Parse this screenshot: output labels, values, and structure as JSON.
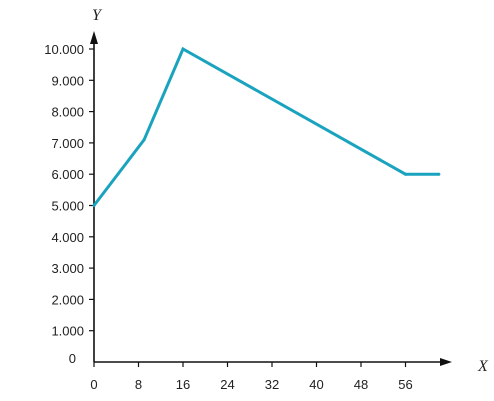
{
  "chart_data": {
    "type": "line",
    "title": "",
    "xlabel": "X",
    "ylabel": "Y",
    "x_ticks": [
      {
        "value": 0,
        "label": "0"
      },
      {
        "value": 8,
        "label": "8"
      },
      {
        "value": 16,
        "label": "16"
      },
      {
        "value": 24,
        "label": "24"
      },
      {
        "value": 32,
        "label": "32"
      },
      {
        "value": 40,
        "label": "40"
      },
      {
        "value": 48,
        "label": "48"
      },
      {
        "value": 56,
        "label": "56"
      }
    ],
    "y_ticks": [
      {
        "value": 0,
        "label": "0"
      },
      {
        "value": 1000,
        "label": "1.000"
      },
      {
        "value": 2000,
        "label": "2.000"
      },
      {
        "value": 3000,
        "label": "3.000"
      },
      {
        "value": 4000,
        "label": "4.000"
      },
      {
        "value": 5000,
        "label": "5.000"
      },
      {
        "value": 6000,
        "label": "6.000"
      },
      {
        "value": 7000,
        "label": "7.000"
      },
      {
        "value": 8000,
        "label": "8.000"
      },
      {
        "value": 9000,
        "label": "9.000"
      },
      {
        "value": 10000,
        "label": "10.000"
      }
    ],
    "xlim": [
      0,
      62
    ],
    "ylim": [
      0,
      10000
    ],
    "grid": false,
    "series": [
      {
        "color": "#1aa3bf",
        "points": [
          {
            "x": 0,
            "y": 5000
          },
          {
            "x": 9,
            "y": 7100
          },
          {
            "x": 16,
            "y": 10000
          },
          {
            "x": 56,
            "y": 6000
          },
          {
            "x": 62,
            "y": 6000
          }
        ]
      }
    ]
  }
}
